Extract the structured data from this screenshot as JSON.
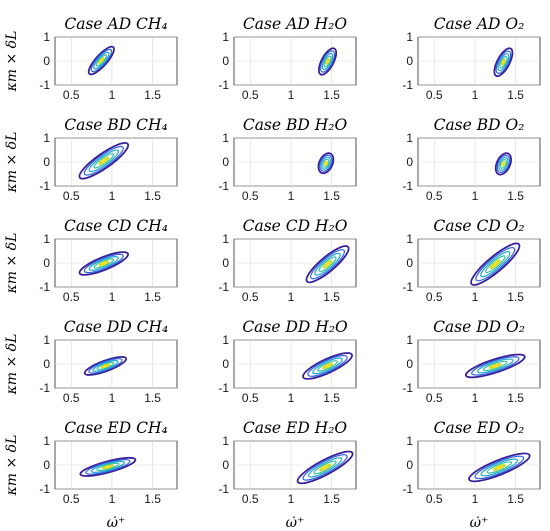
{
  "chart_data": {
    "type": "contour",
    "layout": "5x3 grid of small-multiple panels",
    "xlabel": "ω̇⁺",
    "ylabel": "κm × δL",
    "xlim": [
      0.3,
      1.8
    ],
    "ylim": [
      -1,
      1
    ],
    "xticks": [
      0.5,
      1,
      1.5
    ],
    "yticks": [
      -1,
      0,
      1
    ],
    "xtick_labels": [
      "0.5",
      "1",
      "1.5"
    ],
    "ytick_labels": [
      "-1",
      "0",
      "1"
    ],
    "grid": true,
    "contour_colors": [
      "#3a1f9a",
      "#2f64e0",
      "#1ea5d6",
      "#35c29a",
      "#c9de2b",
      "#f9e021"
    ],
    "panels": [
      {
        "title_case": "Case AD",
        "title_species": "CH₄",
        "center": [
          0.87,
          0.02
        ],
        "spread": [
          0.22,
          0.42
        ],
        "tilt": -48,
        "levels": 5
      },
      {
        "title_case": "Case AD",
        "title_species": "H₂O",
        "center": [
          1.45,
          -0.02
        ],
        "spread": [
          0.18,
          0.45
        ],
        "tilt": -62,
        "levels": 5
      },
      {
        "title_case": "Case AD",
        "title_species": "O₂",
        "center": [
          1.35,
          -0.05
        ],
        "spread": [
          0.19,
          0.46
        ],
        "tilt": -62,
        "levels": 5
      },
      {
        "title_case": "Case BD",
        "title_species": "CH₄",
        "center": [
          0.9,
          0.05
        ],
        "spread": [
          0.36,
          0.55
        ],
        "tilt": -35,
        "levels": 5
      },
      {
        "title_case": "Case BD",
        "title_species": "H₂O",
        "center": [
          1.43,
          -0.05
        ],
        "spread": [
          0.13,
          0.5
        ],
        "tilt": -65,
        "levels": 5
      },
      {
        "title_case": "Case BD",
        "title_species": "O₂",
        "center": [
          1.35,
          -0.08
        ],
        "spread": [
          0.14,
          0.5
        ],
        "tilt": -65,
        "levels": 5
      },
      {
        "title_case": "Case CD",
        "title_species": "CH₄",
        "center": [
          0.9,
          -0.02
        ],
        "spread": [
          0.32,
          0.48
        ],
        "tilt": -22,
        "levels": 5
      },
      {
        "title_case": "Case CD",
        "title_species": "H₂O",
        "center": [
          1.45,
          -0.05
        ],
        "spread": [
          0.33,
          0.55
        ],
        "tilt": -40,
        "levels": 5
      },
      {
        "title_case": "Case CD",
        "title_species": "O₂",
        "center": [
          1.25,
          -0.05
        ],
        "spread": [
          0.38,
          0.58
        ],
        "tilt": -40,
        "levels": 5
      },
      {
        "title_case": "Case DD",
        "title_species": "CH₄",
        "center": [
          0.92,
          -0.08
        ],
        "spread": [
          0.27,
          0.4
        ],
        "tilt": -20,
        "levels": 5
      },
      {
        "title_case": "Case DD",
        "title_species": "H₂O",
        "center": [
          1.45,
          -0.08
        ],
        "spread": [
          0.33,
          0.52
        ],
        "tilt": -25,
        "levels": 5
      },
      {
        "title_case": "Case DD",
        "title_species": "O₂",
        "center": [
          1.25,
          -0.08
        ],
        "spread": [
          0.38,
          0.5
        ],
        "tilt": -18,
        "levels": 5
      },
      {
        "title_case": "Case ED",
        "title_species": "CH₄",
        "center": [
          0.95,
          -0.08
        ],
        "spread": [
          0.35,
          0.42
        ],
        "tilt": -15,
        "levels": 5
      },
      {
        "title_case": "Case ED",
        "title_species": "H₂O",
        "center": [
          1.42,
          -0.1
        ],
        "spread": [
          0.38,
          0.55
        ],
        "tilt": -28,
        "levels": 5
      },
      {
        "title_case": "Case ED",
        "title_species": "O₂",
        "center": [
          1.3,
          -0.1
        ],
        "spread": [
          0.4,
          0.55
        ],
        "tilt": -22,
        "levels": 5
      }
    ]
  }
}
